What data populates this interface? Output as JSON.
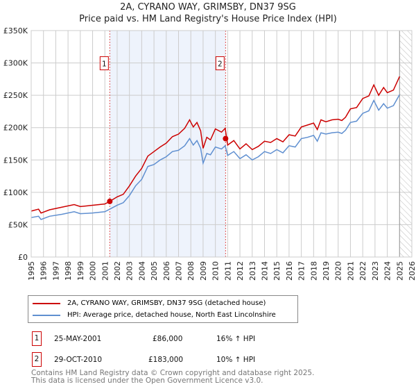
{
  "chart_data": {
    "type": "line",
    "title": "2A, CYRANO WAY, GRIMSBY, DN37 9SG",
    "subtitle": "Price paid vs. HM Land Registry's House Price Index (HPI)",
    "xlim": [
      1995,
      2026
    ],
    "ylim": [
      0,
      350000
    ],
    "x_ticks": [
      "1995",
      "1996",
      "1997",
      "1998",
      "1999",
      "2000",
      "2001",
      "2002",
      "2003",
      "2004",
      "2005",
      "2006",
      "2007",
      "2008",
      "2009",
      "2010",
      "2011",
      "2012",
      "2013",
      "2014",
      "2015",
      "2016",
      "2017",
      "2018",
      "2019",
      "2020",
      "2021",
      "2022",
      "2023",
      "2024",
      "2025",
      "2026"
    ],
    "y_ticks": [
      {
        "v": 0,
        "label": "£0"
      },
      {
        "v": 50000,
        "label": "£50K"
      },
      {
        "v": 100000,
        "label": "£100K"
      },
      {
        "v": 150000,
        "label": "£150K"
      },
      {
        "v": 200000,
        "label": "£200K"
      },
      {
        "v": 250000,
        "label": "£250K"
      },
      {
        "v": 300000,
        "label": "£300K"
      },
      {
        "v": 350000,
        "label": "£350K"
      }
    ],
    "grid": true,
    "x": [
      1995,
      1995.6,
      1995.8,
      1996.5,
      1997.5,
      1998.5,
      1999,
      2000,
      2001,
      2001.4,
      2002,
      2002.5,
      2003,
      2003.5,
      2004,
      2004.5,
      2005,
      2005.5,
      2006,
      2006.5,
      2007,
      2007.5,
      2007.9,
      2008.2,
      2008.5,
      2008.8,
      2009.0,
      2009.3,
      2009.6,
      2010,
      2010.5,
      2010.8,
      2011.0,
      2011.5,
      2012,
      2012.5,
      2013,
      2013.5,
      2014,
      2014.5,
      2015,
      2015.5,
      2016,
      2016.5,
      2017,
      2017.5,
      2018,
      2018.3,
      2018.6,
      2019,
      2019.5,
      2020,
      2020.3,
      2020.6,
      2021,
      2021.5,
      2022,
      2022.5,
      2022.9,
      2023.3,
      2023.7,
      2024,
      2024.5,
      2025
    ],
    "series": [
      {
        "name": "2A, CYRANO WAY, GRIMSBY, DN37 9SG (detached house)",
        "color": "#cc0000",
        "values": [
          71,
          74,
          68,
          73,
          77,
          81,
          78,
          80,
          82,
          86,
          93,
          97,
          110,
          125,
          137,
          156,
          163,
          170,
          176,
          186,
          190,
          199,
          212,
          201,
          208,
          195,
          168,
          185,
          181,
          198,
          193,
          199,
          173,
          180,
          167,
          175,
          166,
          171,
          179,
          177,
          183,
          178,
          189,
          187,
          201,
          204,
          207,
          197,
          212,
          209,
          212,
          213,
          211,
          216,
          229,
          231,
          245,
          249,
          266,
          250,
          262,
          254,
          258,
          279
        ]
      },
      {
        "name": "HPI: Average price, detached house, North East Lincolnshire",
        "color": "#5f8fd0",
        "values": [
          61,
          63,
          58,
          63,
          66,
          70,
          67,
          68,
          70,
          74,
          80,
          84,
          95,
          110,
          120,
          140,
          143,
          150,
          155,
          163,
          165,
          172,
          183,
          173,
          180,
          168,
          145,
          160,
          158,
          170,
          167,
          172,
          157,
          163,
          152,
          158,
          150,
          155,
          163,
          160,
          166,
          161,
          172,
          170,
          183,
          185,
          188,
          179,
          192,
          190,
          192,
          193,
          191,
          196,
          208,
          210,
          222,
          226,
          242,
          227,
          237,
          230,
          234,
          251
        ]
      }
    ],
    "value_unit": "thousands GBP",
    "shaded_range": [
      2001.4,
      2010.83
    ],
    "hatched_range": [
      2025.0,
      2026
    ],
    "sales": [
      {
        "label": "1",
        "x": 2001.4,
        "y": 86
      },
      {
        "label": "2",
        "x": 2010.83,
        "y": 183
      }
    ],
    "legend_position": "below"
  },
  "transactions": [
    {
      "num": "1",
      "date": "25-MAY-2001",
      "price": "£86,000",
      "hpi": "16% ↑ HPI"
    },
    {
      "num": "2",
      "date": "29-OCT-2010",
      "price": "£183,000",
      "hpi": "10% ↑ HPI"
    }
  ],
  "footer": [
    "Contains HM Land Registry data © Crown copyright and database right 2025.",
    "This data is licensed under the Open Government Licence v3.0."
  ]
}
